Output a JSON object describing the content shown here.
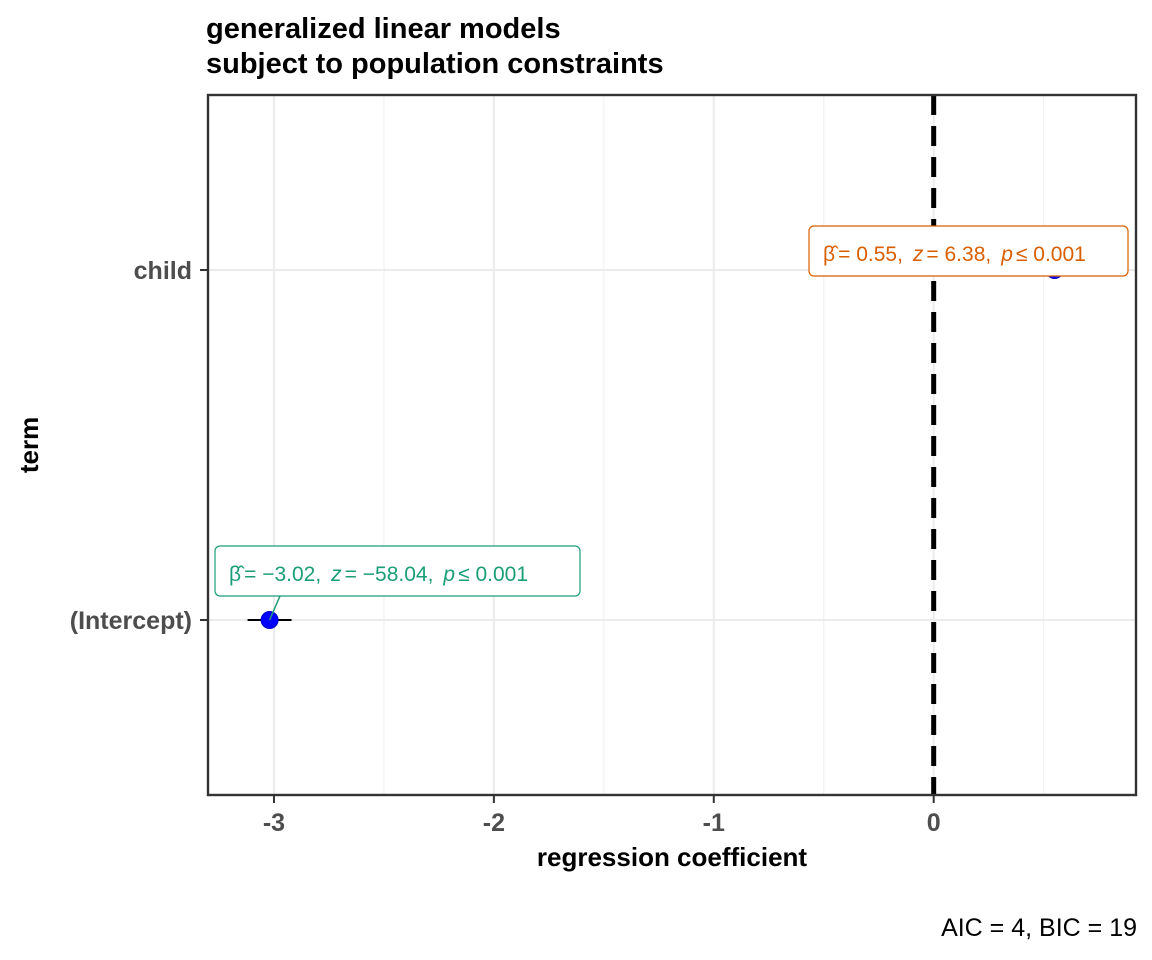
{
  "chart_data": {
    "type": "scatter",
    "title": [
      "generalized linear models",
      "subject to population constraints"
    ],
    "xlabel": "regression coefficient",
    "ylabel": "term",
    "xlim": [
      -3.3,
      0.92
    ],
    "x_ticks": [
      -3,
      -2,
      -1,
      0
    ],
    "x_tick_labels": [
      "-3",
      "-2",
      "-1",
      "0"
    ],
    "categories": [
      "(Intercept)",
      "child"
    ],
    "reference_line": {
      "x": 0,
      "style": "dashed"
    },
    "grid": true,
    "series": [
      {
        "values": [
          -3.02,
          0.55
        ],
        "ci_low": [
          -3.12,
          0.38
        ],
        "ci_high": [
          -2.92,
          0.72
        ],
        "point_color": "#0000ff"
      }
    ],
    "annotations": [
      {
        "term": "(Intercept)",
        "color": "#1b9e77",
        "beta": "= −3.02,",
        "z_label": "z",
        "z": "= −58.04,",
        "p_label": "p",
        "p": "≤ 0.001"
      },
      {
        "term": "child",
        "color": "#d95f02",
        "beta": "= 0.55,",
        "z_label": "z",
        "z": "= 6.38,",
        "p_label": "p",
        "p": "≤ 0.001"
      }
    ],
    "caption": "AIC = 4, BIC = 19"
  }
}
